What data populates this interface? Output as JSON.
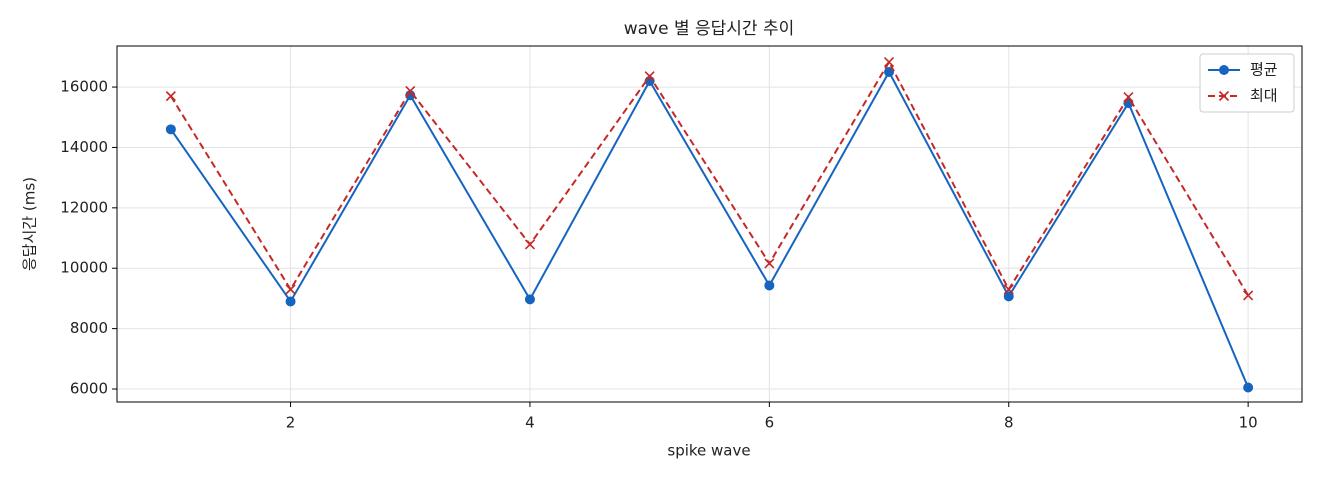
{
  "chart_data": {
    "type": "line",
    "title": "wave 별 응답시간 추이",
    "xlabel": "spike wave",
    "ylabel": "응답시간 (ms)",
    "x": [
      1,
      2,
      3,
      4,
      5,
      6,
      7,
      8,
      9,
      10
    ],
    "series": [
      {
        "name": "평균",
        "color": "#1565c0",
        "marker": "o",
        "linestyle": "solid",
        "values": [
          14600,
          8900,
          15730,
          8970,
          16200,
          9430,
          16500,
          9070,
          15470,
          6050
        ]
      },
      {
        "name": "최대",
        "color": "#c62828",
        "marker": "x",
        "linestyle": "dashed",
        "values": [
          15700,
          9300,
          15870,
          10790,
          16360,
          10160,
          16830,
          9300,
          15670,
          9100
        ]
      }
    ],
    "xlim": [
      0.55,
      10.45
    ],
    "xticks": [
      2,
      4,
      6,
      8,
      10
    ],
    "ylim": [
      5570,
      17360
    ],
    "yticks": [
      6000,
      8000,
      10000,
      12000,
      14000,
      16000
    ],
    "grid": true,
    "legend": "upper right"
  }
}
